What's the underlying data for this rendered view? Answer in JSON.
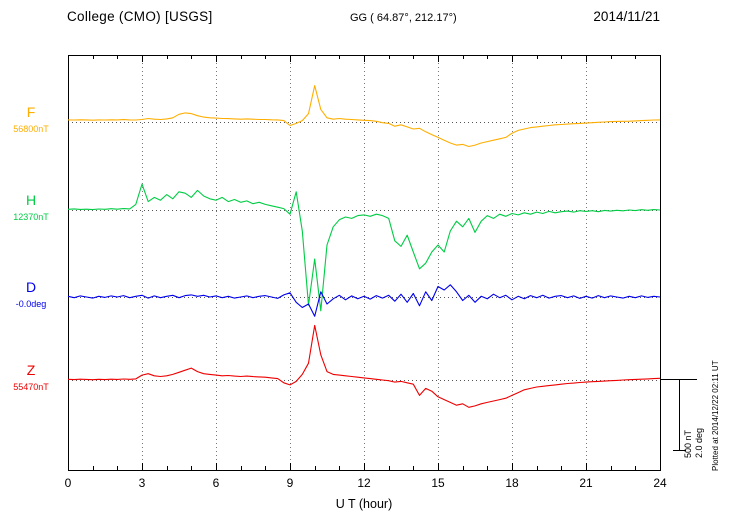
{
  "header": {
    "station": "College (CMO)  [USGS]",
    "coordinates": "GG ( 64.87°, 212.17°)",
    "date": "2014/11/21"
  },
  "footer": {
    "xlabel": "U T (hour)"
  },
  "scale_bar_labels": {
    "nT": "500 nT",
    "deg": "2.0 deg"
  },
  "plotted_at": "Plotted at 2014/12/22 02:11 UT",
  "chart_data": {
    "type": "line",
    "title": "College (CMO) [USGS] magnetogram",
    "subtitle": "GG ( 64.87°, 212.17°)",
    "date": "2014/11/21",
    "xlabel": "U T (hour)",
    "x_range": [
      0,
      24
    ],
    "x_ticks": [
      0,
      3,
      6,
      9,
      12,
      15,
      18,
      21,
      24
    ],
    "x_step_hours": 0.25,
    "grid": "dotted vertical lines every 3 hours; dotted horizontal baseline per trace",
    "legend_position": "left margin (stacked trace labels)",
    "values_are_offsets_from_baseline": true,
    "scale_bar": {
      "nT_per_div": 500,
      "deg_per_div": 2.0
    },
    "series": [
      {
        "name": "F",
        "baseline_label": "56800nT",
        "baseline_value": 56800,
        "unit": "nT",
        "color": "#FFAE00",
        "values": [
          15,
          14,
          16,
          15,
          13,
          15,
          14,
          16,
          15,
          17,
          15,
          14,
          18,
          25,
          20,
          18,
          22,
          30,
          55,
          65,
          60,
          45,
          35,
          30,
          28,
          25,
          24,
          22,
          20,
          22,
          20,
          18,
          18,
          16,
          15,
          10,
          -25,
          -10,
          10,
          60,
          260,
          90,
          30,
          20,
          25,
          20,
          18,
          15,
          12,
          10,
          5,
          -5,
          -10,
          -30,
          -20,
          -35,
          -50,
          -45,
          -70,
          -90,
          -110,
          -130,
          -150,
          -165,
          -160,
          -175,
          -165,
          -150,
          -140,
          -130,
          -120,
          -110,
          -80,
          -60,
          -50,
          -40,
          -35,
          -30,
          -25,
          -20,
          -18,
          -15,
          -12,
          -10,
          -8,
          -5,
          -2,
          0,
          3,
          4,
          5,
          6,
          8,
          10,
          12,
          14,
          15
        ]
      },
      {
        "name": "H",
        "baseline_label": "12370nT",
        "baseline_value": 12370,
        "unit": "nT",
        "color": "#00CC44",
        "values": [
          5,
          8,
          4,
          6,
          3,
          7,
          5,
          9,
          6,
          10,
          8,
          40,
          185,
          60,
          90,
          70,
          110,
          80,
          130,
          120,
          90,
          140,
          100,
          80,
          70,
          90,
          60,
          75,
          55,
          65,
          45,
          55,
          40,
          30,
          20,
          10,
          -30,
          130,
          -150,
          -680,
          -350,
          -720,
          -250,
          -120,
          -70,
          -50,
          -60,
          -40,
          -35,
          -45,
          -30,
          -40,
          -60,
          -220,
          -260,
          -180,
          -300,
          -420,
          -380,
          -300,
          -250,
          -300,
          -150,
          -80,
          -120,
          -60,
          -160,
          -80,
          -40,
          -60,
          -30,
          -45,
          -25,
          -35,
          -20,
          -30,
          -15,
          -25,
          -10,
          -20,
          -12,
          -8,
          -15,
          -5,
          -10,
          -5,
          -12,
          -3,
          -8,
          -2,
          -6,
          0,
          -4,
          2,
          -2,
          3,
          0
        ]
      },
      {
        "name": "D",
        "baseline_label": "-0.0deg",
        "baseline_value": 0,
        "unit": "deg",
        "color": "#0000EE",
        "values": [
          0.02,
          -0.02,
          0.03,
          0,
          -0.03,
          0.02,
          -0.01,
          0.03,
          0,
          0.04,
          -0.02,
          0.02,
          0.05,
          -0.03,
          0.03,
          -0.02,
          0.02,
          0.05,
          -0.02,
          0.04,
          0.06,
          0.02,
          0.05,
          0,
          0.03,
          -0.02,
          0.02,
          -0.03,
          0,
          0.03,
          -0.02,
          0.02,
          0.04,
          0,
          -0.04,
          0.06,
          0.12,
          -0.15,
          -0.3,
          -0.2,
          -0.55,
          0.15,
          -0.2,
          -0.05,
          0.05,
          -0.08,
          0.03,
          -0.05,
          0.02,
          -0.06,
          0.04,
          -0.03,
          0.05,
          -0.12,
          0.08,
          -0.15,
          0.1,
          -0.25,
          0.15,
          -0.1,
          0.3,
          0.2,
          0.35,
          0.15,
          -0.1,
          0.05,
          -0.15,
          0.02,
          -0.05,
          0.08,
          -0.02,
          0.05,
          -0.08,
          0.02,
          -0.05,
          0.04,
          -0.02,
          0.05,
          -0.03,
          0.02,
          0.04,
          -0.02,
          0.03,
          -0.04,
          0.02,
          -0.03,
          0.04,
          -0.02,
          0.03,
          0,
          -0.03,
          0.02,
          -0.02,
          0.03,
          -0.01,
          0.02,
          0
        ]
      },
      {
        "name": "Z",
        "baseline_label": "55470nT",
        "baseline_value": 55470,
        "unit": "nT",
        "color": "#EE0000",
        "values": [
          5,
          3,
          6,
          4,
          2,
          5,
          3,
          6,
          4,
          7,
          5,
          8,
          35,
          45,
          30,
          25,
          30,
          40,
          55,
          70,
          85,
          60,
          45,
          40,
          35,
          30,
          32,
          28,
          25,
          28,
          24,
          22,
          20,
          15,
          10,
          -20,
          -35,
          -10,
          40,
          120,
          390,
          180,
          60,
          40,
          35,
          30,
          25,
          20,
          15,
          10,
          5,
          0,
          -5,
          -15,
          -10,
          -20,
          -30,
          -110,
          -60,
          -80,
          -120,
          -140,
          -160,
          -180,
          -170,
          -195,
          -185,
          -170,
          -160,
          -150,
          -140,
          -130,
          -110,
          -90,
          -70,
          -60,
          -50,
          -45,
          -40,
          -35,
          -30,
          -25,
          -22,
          -18,
          -15,
          -12,
          -10,
          -8,
          -5,
          -3,
          0,
          2,
          4,
          6,
          8,
          10,
          12
        ]
      }
    ]
  }
}
